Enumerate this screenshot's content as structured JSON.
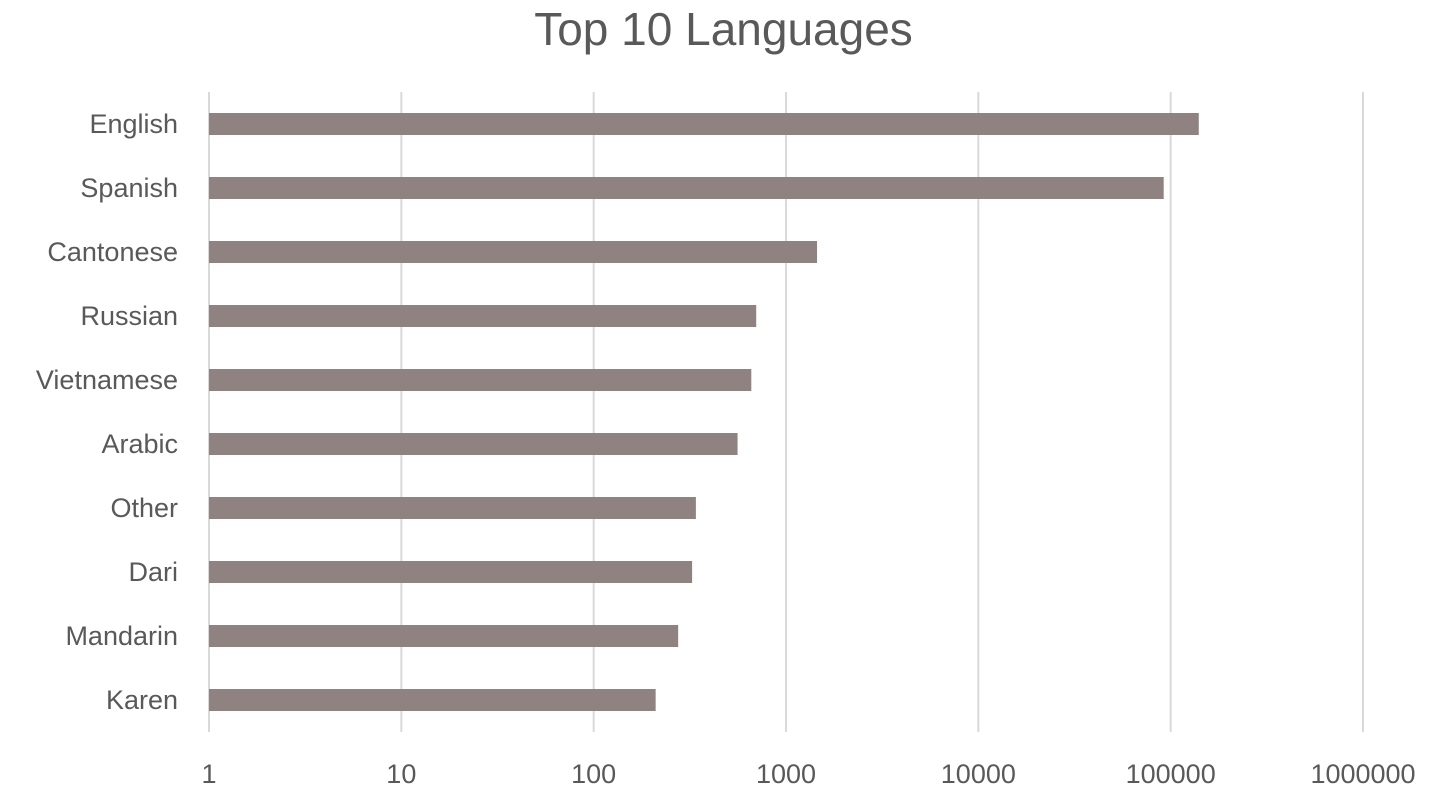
{
  "chart_data": {
    "type": "bar",
    "orientation": "horizontal",
    "title": "Top 10 Languages",
    "xscale": "log",
    "xlim": [
      1,
      1000000
    ],
    "xticks": [
      "1",
      "10",
      "100",
      "1000",
      "10000",
      "100000",
      "1000000"
    ],
    "xtick_values": [
      1,
      10,
      100,
      1000,
      10000,
      100000,
      1000000
    ],
    "grid": "vertical",
    "bar_color": "#8f8280",
    "grid_color": "#d9d9d9",
    "categories": [
      "English",
      "Spanish",
      "Cantonese ",
      "Russian",
      "Vietnamese ",
      "Arabic",
      "Other",
      "Dari",
      "Mandarin ",
      "Karen"
    ],
    "values": [
      140000,
      92000,
      1450,
      700,
      660,
      560,
      340,
      325,
      275,
      210
    ]
  }
}
